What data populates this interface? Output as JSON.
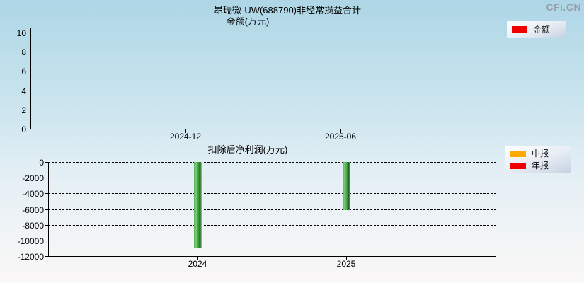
{
  "watermark": "CFi.CN",
  "colors": {
    "background_top": "#aed6e6",
    "background_bottom": "#fbf8f7",
    "bar_green": "#3da33d",
    "legend_red": "#ee0000",
    "legend_orange": "#ffaa00",
    "axis_and_grid": "#000000",
    "watermark_gray": "#96a1ad"
  },
  "chart_data": [
    {
      "type": "bar",
      "title": "昂瑞微-UW(688790)非经常损益合计",
      "subtitle": "金额(万元)",
      "ylim": [
        0,
        10
      ],
      "yticks": [
        10,
        8,
        6,
        4,
        2,
        0
      ],
      "xticks": [
        "2024-12",
        "2025-06"
      ],
      "categories": [
        "2024-12",
        "2025-06"
      ],
      "values": [
        null,
        null
      ],
      "grid": "dashed horizontal",
      "legend_position": "top-right",
      "legend": [
        {
          "label": "金额",
          "color": "#ee0000"
        }
      ]
    },
    {
      "type": "bar",
      "title": "扣除后净利润(万元)",
      "subtitle": "",
      "ylim": [
        -12000,
        0
      ],
      "yticks": [
        0,
        -2000,
        -4000,
        -6000,
        -8000,
        -10000,
        -12000
      ],
      "xticks": [
        "2024",
        "2025"
      ],
      "categories": [
        "2024",
        "2025"
      ],
      "values": [
        -11040,
        -6100
      ],
      "periods": [
        "年报",
        "中报"
      ],
      "bar_color": "#3da33d",
      "grid": "dashed horizontal",
      "legend_position": "top-right",
      "legend": [
        {
          "label": "中报",
          "color": "#ffaa00"
        },
        {
          "label": "年报",
          "color": "#ee0000"
        }
      ]
    }
  ]
}
